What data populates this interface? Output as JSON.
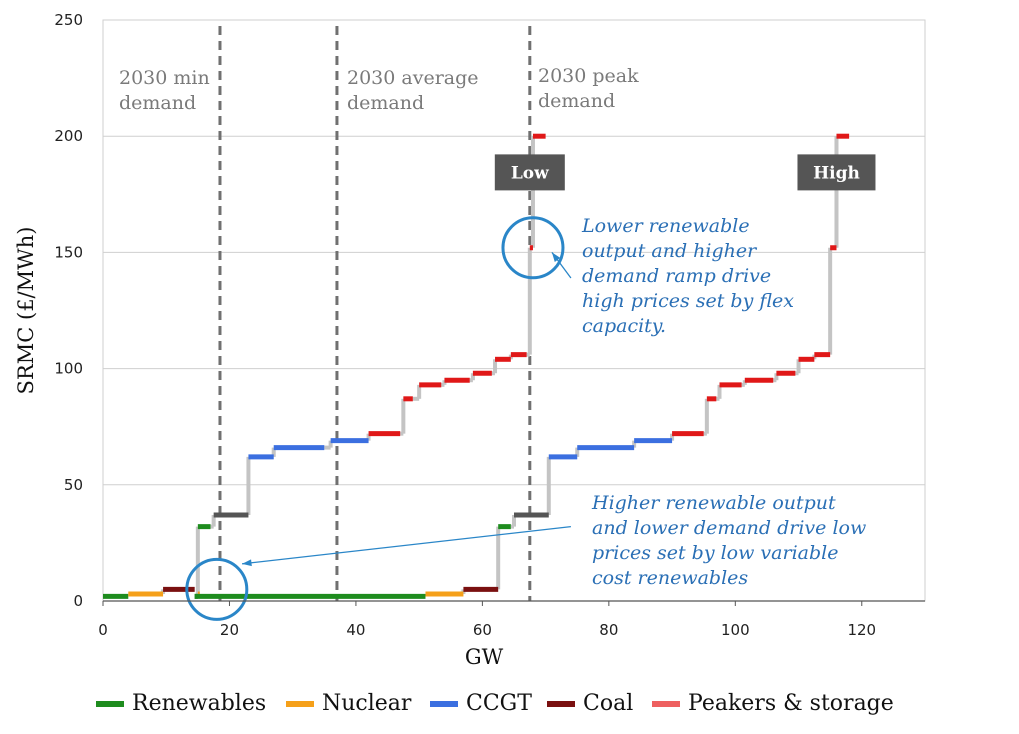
{
  "chart_data": {
    "type": "line",
    "title": "",
    "xlabel": "GW",
    "ylabel": "SRMC (£/MWh)",
    "xlim": [
      0,
      130
    ],
    "ylim": [
      0,
      250
    ],
    "xticks": [
      0,
      20,
      40,
      60,
      80,
      100,
      120
    ],
    "yticks": [
      0,
      50,
      100,
      150,
      200,
      250
    ],
    "grid": "horizontal",
    "legend_position": "bottom",
    "legend": [
      {
        "name": "Renewables",
        "color": "#1e8c1e"
      },
      {
        "name": "Nuclear",
        "color": "#f5a01a"
      },
      {
        "name": "CCGT",
        "color": "#3b6fe0"
      },
      {
        "name": "Coal",
        "color": "#7a1010"
      },
      {
        "name": "Peakers & storage",
        "color": "#ee6060"
      }
    ],
    "colors": {
      "Renewables": "#1e8c1e",
      "Nuclear": "#f5a01a",
      "CCGT": "#3b6fe0",
      "Coal": "#7a1010",
      "Coal_grey": "#555555",
      "Peakers & storage": "#e01818",
      "step": "#c4c4c4",
      "annotation": "#2a86c8",
      "box": "#555555"
    },
    "vertical_lines": [
      {
        "x": 18.5,
        "label": [
          "2030 min",
          "demand"
        ]
      },
      {
        "x": 37,
        "label": [
          "2030 average",
          "demand"
        ]
      },
      {
        "x": 67.5,
        "label": [
          "2030 peak",
          "demand"
        ]
      }
    ],
    "series": [
      {
        "name": "Low",
        "segments": [
          {
            "type": "Renewables",
            "x0": 0,
            "x1": 4,
            "y": 2
          },
          {
            "type": "Nuclear",
            "x0": 4,
            "x1": 9.5,
            "y": 3
          },
          {
            "type": "Coal",
            "x0": 9.5,
            "x1": 14.5,
            "y": 5
          },
          {
            "type": "Renewables",
            "x0": 14.5,
            "x1": 15,
            "y": 2
          },
          {
            "type": "Nuclear",
            "x0": 15,
            "x1": 15.3,
            "y": 3
          },
          {
            "type": "Renewables",
            "x0": 15,
            "x1": 17,
            "y": 32
          },
          {
            "type": "Coal_grey",
            "x0": 17.5,
            "x1": 23,
            "y": 37
          },
          {
            "type": "CCGT",
            "x0": 23,
            "x1": 27,
            "y": 62
          },
          {
            "type": "CCGT",
            "x0": 27,
            "x1": 35,
            "y": 66
          },
          {
            "type": "CCGT",
            "x0": 36,
            "x1": 42,
            "y": 69
          },
          {
            "type": "Peakers & storage",
            "x0": 42,
            "x1": 47,
            "y": 72
          },
          {
            "type": "Peakers & storage",
            "x0": 47.5,
            "x1": 49,
            "y": 87
          },
          {
            "type": "Peakers & storage",
            "x0": 50,
            "x1": 53.5,
            "y": 93
          },
          {
            "type": "Peakers & storage",
            "x0": 54,
            "x1": 58,
            "y": 95
          },
          {
            "type": "Peakers & storage",
            "x0": 58.5,
            "x1": 61.5,
            "y": 98
          },
          {
            "type": "Peakers & storage",
            "x0": 62,
            "x1": 64.5,
            "y": 104
          },
          {
            "type": "Peakers & storage",
            "x0": 64.5,
            "x1": 67,
            "y": 106
          },
          {
            "type": "Peakers & storage",
            "x0": 67.5,
            "x1": 68,
            "y": 152
          },
          {
            "type": "Peakers & storage",
            "x0": 68,
            "x1": 70,
            "y": 200
          }
        ]
      },
      {
        "name": "High",
        "segments": [
          {
            "type": "Renewables",
            "x0": 14.5,
            "x1": 51,
            "y": 2
          },
          {
            "type": "Nuclear",
            "x0": 51,
            "x1": 57,
            "y": 3
          },
          {
            "type": "Coal",
            "x0": 57,
            "x1": 62.5,
            "y": 5
          },
          {
            "type": "Renewables",
            "x0": 62.5,
            "x1": 64.5,
            "y": 32
          },
          {
            "type": "Coal_grey",
            "x0": 65,
            "x1": 70.5,
            "y": 37
          },
          {
            "type": "CCGT",
            "x0": 70.5,
            "x1": 75,
            "y": 62
          },
          {
            "type": "CCGT",
            "x0": 75,
            "x1": 84,
            "y": 66
          },
          {
            "type": "CCGT",
            "x0": 84,
            "x1": 90,
            "y": 69
          },
          {
            "type": "Peakers & storage",
            "x0": 90,
            "x1": 95,
            "y": 72
          },
          {
            "type": "Peakers & storage",
            "x0": 95.5,
            "x1": 97,
            "y": 87
          },
          {
            "type": "Peakers & storage",
            "x0": 97.5,
            "x1": 101,
            "y": 93
          },
          {
            "type": "Peakers & storage",
            "x0": 101.5,
            "x1": 106,
            "y": 95
          },
          {
            "type": "Peakers & storage",
            "x0": 106.5,
            "x1": 109.5,
            "y": 98
          },
          {
            "type": "Peakers & storage",
            "x0": 110,
            "x1": 112.5,
            "y": 104
          },
          {
            "type": "Peakers & storage",
            "x0": 112.5,
            "x1": 115,
            "y": 106
          },
          {
            "type": "Peakers & storage",
            "x0": 115,
            "x1": 116,
            "y": 152
          },
          {
            "type": "Peakers & storage",
            "x0": 116,
            "x1": 118,
            "y": 200
          }
        ]
      }
    ],
    "series_labels": [
      {
        "text": "Low",
        "x": 67.5,
        "y": 184
      },
      {
        "text": "High",
        "x": 116,
        "y": 184
      }
    ],
    "annotations": [
      {
        "text": [
          "Lower renewable",
          "output and higher",
          "demand ramp drive",
          "high prices set by flex",
          "capacity."
        ],
        "circle": {
          "x": 68,
          "y": 152
        },
        "arrow_from": {
          "x": 74,
          "y": 139
        },
        "arrow_to": {
          "x": 71,
          "y": 150
        }
      },
      {
        "text": [
          "Higher renewable output",
          "and lower demand drive low",
          "prices set by low variable",
          "cost renewables"
        ],
        "circle": {
          "x": 18,
          "y": 5
        },
        "arrow_from": {
          "x": 74,
          "y": 32
        },
        "arrow_to": {
          "x": 22,
          "y": 16
        }
      }
    ]
  }
}
